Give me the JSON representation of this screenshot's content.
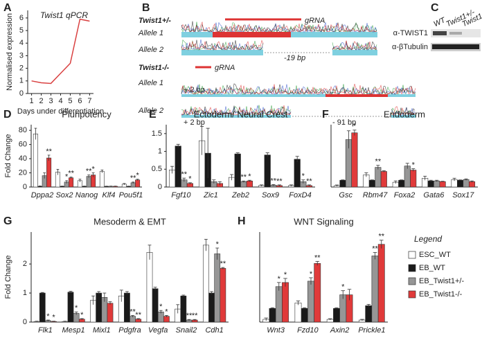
{
  "chart_data": [
    {
      "type": "line",
      "panel": "A",
      "title": "Twist1 qPCR",
      "ylabel": "Normalised expression",
      "xlabel": "Days under differentiation",
      "x": [
        1,
        2,
        3,
        4,
        5,
        6,
        7
      ],
      "values": [
        1.0,
        0.85,
        0.8,
        1.6,
        2.4,
        5.9,
        5.75
      ],
      "color": "#d94040",
      "xlim": [
        0.6,
        7.4
      ],
      "xticks": [
        1,
        2,
        3,
        4,
        5,
        6,
        7
      ],
      "ylim": [
        0,
        6.6
      ],
      "yticks": [
        0,
        1,
        2,
        3,
        4,
        5,
        6
      ]
    },
    {
      "type": "bar",
      "panel": "D",
      "title": "Pluripotency",
      "ylabel": "Fold Change",
      "categories": [
        "Dppa2",
        "Sox2",
        "Nanog",
        "Klf4",
        "Pou5f1"
      ],
      "ylim": [
        0,
        88
      ],
      "yticks": [
        0,
        20,
        40,
        60,
        80
      ],
      "series": [
        {
          "color": "#ffffff",
          "values": [
            75,
            21,
            9,
            22,
            4
          ],
          "errors": [
            8,
            4,
            2,
            2,
            1
          ],
          "stars": [
            null,
            null,
            null,
            null,
            null
          ]
        },
        {
          "color": "#1a1a1a",
          "values": [
            1,
            1,
            1,
            1,
            1
          ],
          "errors": [
            0.5,
            0.3,
            0.3,
            0.2,
            0.2
          ],
          "stars": [
            null,
            null,
            null,
            null,
            null
          ]
        },
        {
          "color": "#969696",
          "values": [
            16,
            7,
            15,
            1,
            6
          ],
          "errors": [
            4,
            2,
            2,
            0.3,
            1
          ],
          "stars": [
            null,
            "*",
            "**",
            null,
            "**"
          ]
        },
        {
          "color": "#e03a3a",
          "values": [
            41,
            13,
            17,
            1,
            10
          ],
          "errors": [
            4,
            1,
            3,
            0.3,
            1
          ],
          "stars": [
            "**",
            "**",
            "*",
            null,
            "*"
          ]
        }
      ]
    },
    {
      "type": "bar",
      "panel": "E",
      "title": "Ectoderm/ Neural Crest",
      "categories": [
        "Fgf10",
        "Zic1",
        "Zeb2",
        "Sox9",
        "FoxD4"
      ],
      "ylim": [
        0,
        1.75
      ],
      "yticks": [
        0,
        0.5,
        1,
        1.5
      ],
      "series": [
        {
          "color": "#ffffff",
          "values": [
            0.48,
            1.3,
            0.27,
            0.04,
            0.04
          ],
          "errors": [
            0.1,
            0.4,
            0.08,
            0.02,
            0.02
          ],
          "stars": [
            null,
            null,
            null,
            null,
            null
          ]
        },
        {
          "color": "#1a1a1a",
          "values": [
            1.15,
            0.95,
            0.93,
            0.9,
            0.78
          ],
          "errors": [
            0.05,
            0.7,
            0.03,
            0.06,
            0.08
          ],
          "stars": [
            null,
            null,
            null,
            null,
            null
          ]
        },
        {
          "color": "#969696",
          "values": [
            0.2,
            0.15,
            0.15,
            0.05,
            0.15
          ],
          "errors": [
            0.05,
            0.05,
            0.02,
            0.02,
            0.05
          ],
          "stars": [
            "**",
            null,
            "**",
            "**",
            "*"
          ]
        },
        {
          "color": "#e03a3a",
          "values": [
            0.1,
            0.1,
            0.17,
            0.04,
            0.04
          ],
          "errors": [
            0.02,
            0.05,
            0.02,
            0.02,
            0.02
          ],
          "stars": [
            "*",
            null,
            "*",
            "**",
            "**"
          ]
        }
      ]
    },
    {
      "type": "bar",
      "panel": "F",
      "title": "Endoderm",
      "categories": [
        "Gsc",
        "Rbm47",
        "Foxa2",
        "Gata6",
        "Sox17"
      ],
      "ylim": [
        0,
        9.2
      ],
      "yticks": [],
      "series": [
        {
          "color": "#ffffff",
          "values": [
            0.2,
            1.8,
            0.7,
            1.3,
            1.1
          ],
          "errors": [
            0.1,
            0.3,
            0.2,
            0.3,
            0.2
          ],
          "stars": [
            null,
            null,
            null,
            null,
            null
          ]
        },
        {
          "color": "#1a1a1a",
          "values": [
            1.0,
            1.0,
            1.0,
            0.9,
            1.0
          ],
          "errors": [
            0.05,
            0.05,
            0.05,
            0.1,
            0.05
          ],
          "stars": [
            null,
            null,
            null,
            null,
            null
          ]
        },
        {
          "color": "#969696",
          "values": [
            7.0,
            2.9,
            3.1,
            0.9,
            1.1
          ],
          "errors": [
            1.3,
            0.3,
            0.4,
            0.1,
            0.1
          ],
          "stars": [
            null,
            "**",
            null,
            null,
            null
          ]
        },
        {
          "color": "#e03a3a",
          "values": [
            8.0,
            2.3,
            2.5,
            0.8,
            0.8
          ],
          "errors": [
            0.4,
            0.1,
            0.2,
            0.05,
            0.1
          ],
          "stars": [
            "*",
            null,
            "*",
            null,
            null
          ]
        }
      ]
    },
    {
      "type": "bar",
      "panel": "G",
      "title": "Mesoderm & EMT",
      "ylabel": "Fold Change",
      "categories": [
        "Flk1",
        "Mesp1",
        "Mixl1",
        "Pdgfra",
        "Vegfa",
        "Snail2",
        "Cdh1"
      ],
      "ylim": [
        0,
        3.1
      ],
      "yticks": [
        0,
        1,
        2
      ],
      "series": [
        {
          "color": "#ffffff",
          "values": [
            0.02,
            0.02,
            0.75,
            0.9,
            2.4,
            0.45,
            2.65
          ],
          "errors": [
            0.01,
            0.01,
            0.15,
            0.2,
            0.25,
            0.15,
            0.2
          ],
          "stars": [
            null,
            null,
            null,
            null,
            null,
            null,
            null
          ]
        },
        {
          "color": "#1a1a1a",
          "values": [
            1.0,
            1.03,
            1.0,
            1.0,
            1.15,
            0.9,
            1.0
          ],
          "errors": [
            0.02,
            0.03,
            0.05,
            0.05,
            0.05,
            0.03,
            0.05
          ],
          "stars": [
            null,
            null,
            null,
            null,
            null,
            null,
            null
          ]
        },
        {
          "color": "#969696",
          "values": [
            0.05,
            0.3,
            0.85,
            0.2,
            0.35,
            0.07,
            2.35
          ],
          "errors": [
            0.02,
            0.05,
            0.15,
            0.03,
            0.05,
            0.02,
            0.2
          ],
          "stars": [
            "*",
            "*",
            null,
            "**",
            "*",
            "**",
            "*"
          ]
        },
        {
          "color": "#e03a3a",
          "values": [
            0.02,
            0.1,
            0.65,
            0.1,
            0.2,
            0.07,
            1.85
          ],
          "errors": [
            0.01,
            0.02,
            0.05,
            0.02,
            0.03,
            0.02,
            0.03
          ],
          "stars": [
            "*",
            "*",
            null,
            "**",
            "*",
            "**",
            "**"
          ]
        }
      ]
    },
    {
      "type": "bar",
      "panel": "H",
      "title": "WNT Signaling",
      "legend_title": "Legend",
      "categories": [
        "Wnt3",
        "Fzd10",
        "Axin2",
        "Prickle1"
      ],
      "ylim": [
        0,
        6.6
      ],
      "yticks": [],
      "series": [
        {
          "name": "ESC_WT",
          "color": "#ffffff",
          "values": [
            0.2,
            1.4,
            0.2,
            0.15
          ],
          "errors": [
            0.1,
            0.15,
            0.05,
            0.05
          ],
          "stars": [
            null,
            null,
            null,
            null
          ]
        },
        {
          "name": "EB_WT",
          "color": "#1a1a1a",
          "values": [
            1.0,
            1.0,
            1.0,
            1.2
          ],
          "errors": [
            0.05,
            0.05,
            0.05,
            0.1
          ],
          "stars": [
            null,
            null,
            null,
            null
          ]
        },
        {
          "name": "EB_Twist1+/-",
          "color": "#969696",
          "values": [
            2.6,
            3.0,
            2.0,
            4.85
          ],
          "errors": [
            0.3,
            0.25,
            0.3,
            0.25
          ],
          "stars": [
            "*",
            "*",
            "*",
            "**"
          ]
        },
        {
          "name": "EB_Twist1-/-",
          "color": "#e03a3a",
          "values": [
            2.9,
            4.3,
            2.0,
            5.7
          ],
          "errors": [
            0.3,
            0.15,
            0.4,
            0.3
          ],
          "stars": [
            "*",
            "**",
            null,
            "**"
          ]
        }
      ]
    }
  ],
  "panel_b": {
    "letter": "B",
    "het": "Twist1+/-",
    "het_grna": "gRNA",
    "het_allele1": "Allele 1",
    "het_allele2": "Allele 2",
    "het_del": "-19 bp",
    "ko": "Twist1-/-",
    "ko_grna": "gRNA",
    "ko_allele1": "Allele 1",
    "ko_allele2": "Allele 2",
    "ko_ins1": "+ 2 bp",
    "ko_ins2": "+ 2 bp",
    "ko_del": "- 91 bp"
  },
  "panel_c": {
    "letter": "C",
    "lanes": [
      "WT",
      "Twist1+/-",
      "Twist1-/-"
    ],
    "blot1": "α-TWIST1",
    "blot2": "α-βTubulin"
  }
}
